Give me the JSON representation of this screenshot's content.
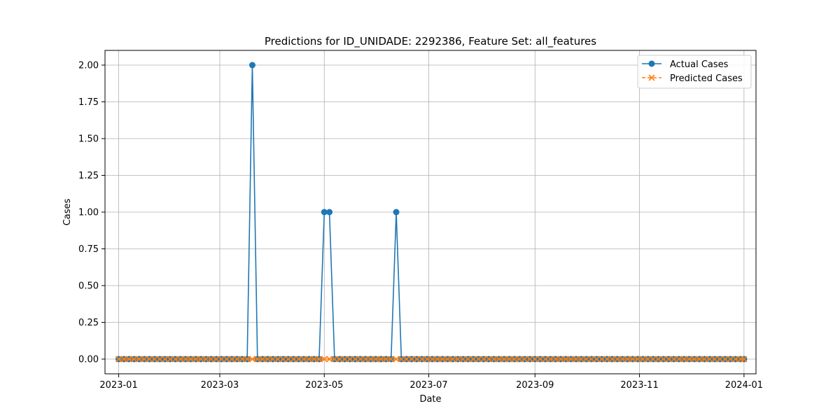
{
  "chart_data": {
    "type": "line",
    "title": "Predictions for ID_UNIDADE: 2292386, Feature Set: all_features",
    "xlabel": "Date",
    "ylabel": "Cases",
    "x_range": [
      "2022-12-24",
      "2024-01-08"
    ],
    "ylim": [
      -0.1,
      2.1
    ],
    "x_ticks": [
      "2023-01",
      "2023-03",
      "2023-05",
      "2023-07",
      "2023-09",
      "2023-11",
      "2024-01"
    ],
    "y_ticks": [
      "0.00",
      "0.25",
      "0.50",
      "0.75",
      "1.00",
      "1.25",
      "1.50",
      "1.75",
      "2.00"
    ],
    "grid": true,
    "legend_position": "top-right",
    "x_start": "2023-01-01",
    "x_end": "2024-01-01",
    "step_days": 3,
    "series": [
      {
        "name": "Actual Cases",
        "color": "#1f77b4",
        "marker": "circle",
        "line_style": "solid",
        "default_value": 0,
        "values_by_date": {
          "2023-03-20": 2,
          "2023-05-01": 1,
          "2023-05-04": 1,
          "2023-06-12": 1
        }
      },
      {
        "name": "Predicted Cases",
        "color": "#ff7f0e",
        "marker": "x",
        "line_style": "dashed",
        "default_value": 0,
        "values_by_date": {}
      }
    ]
  }
}
